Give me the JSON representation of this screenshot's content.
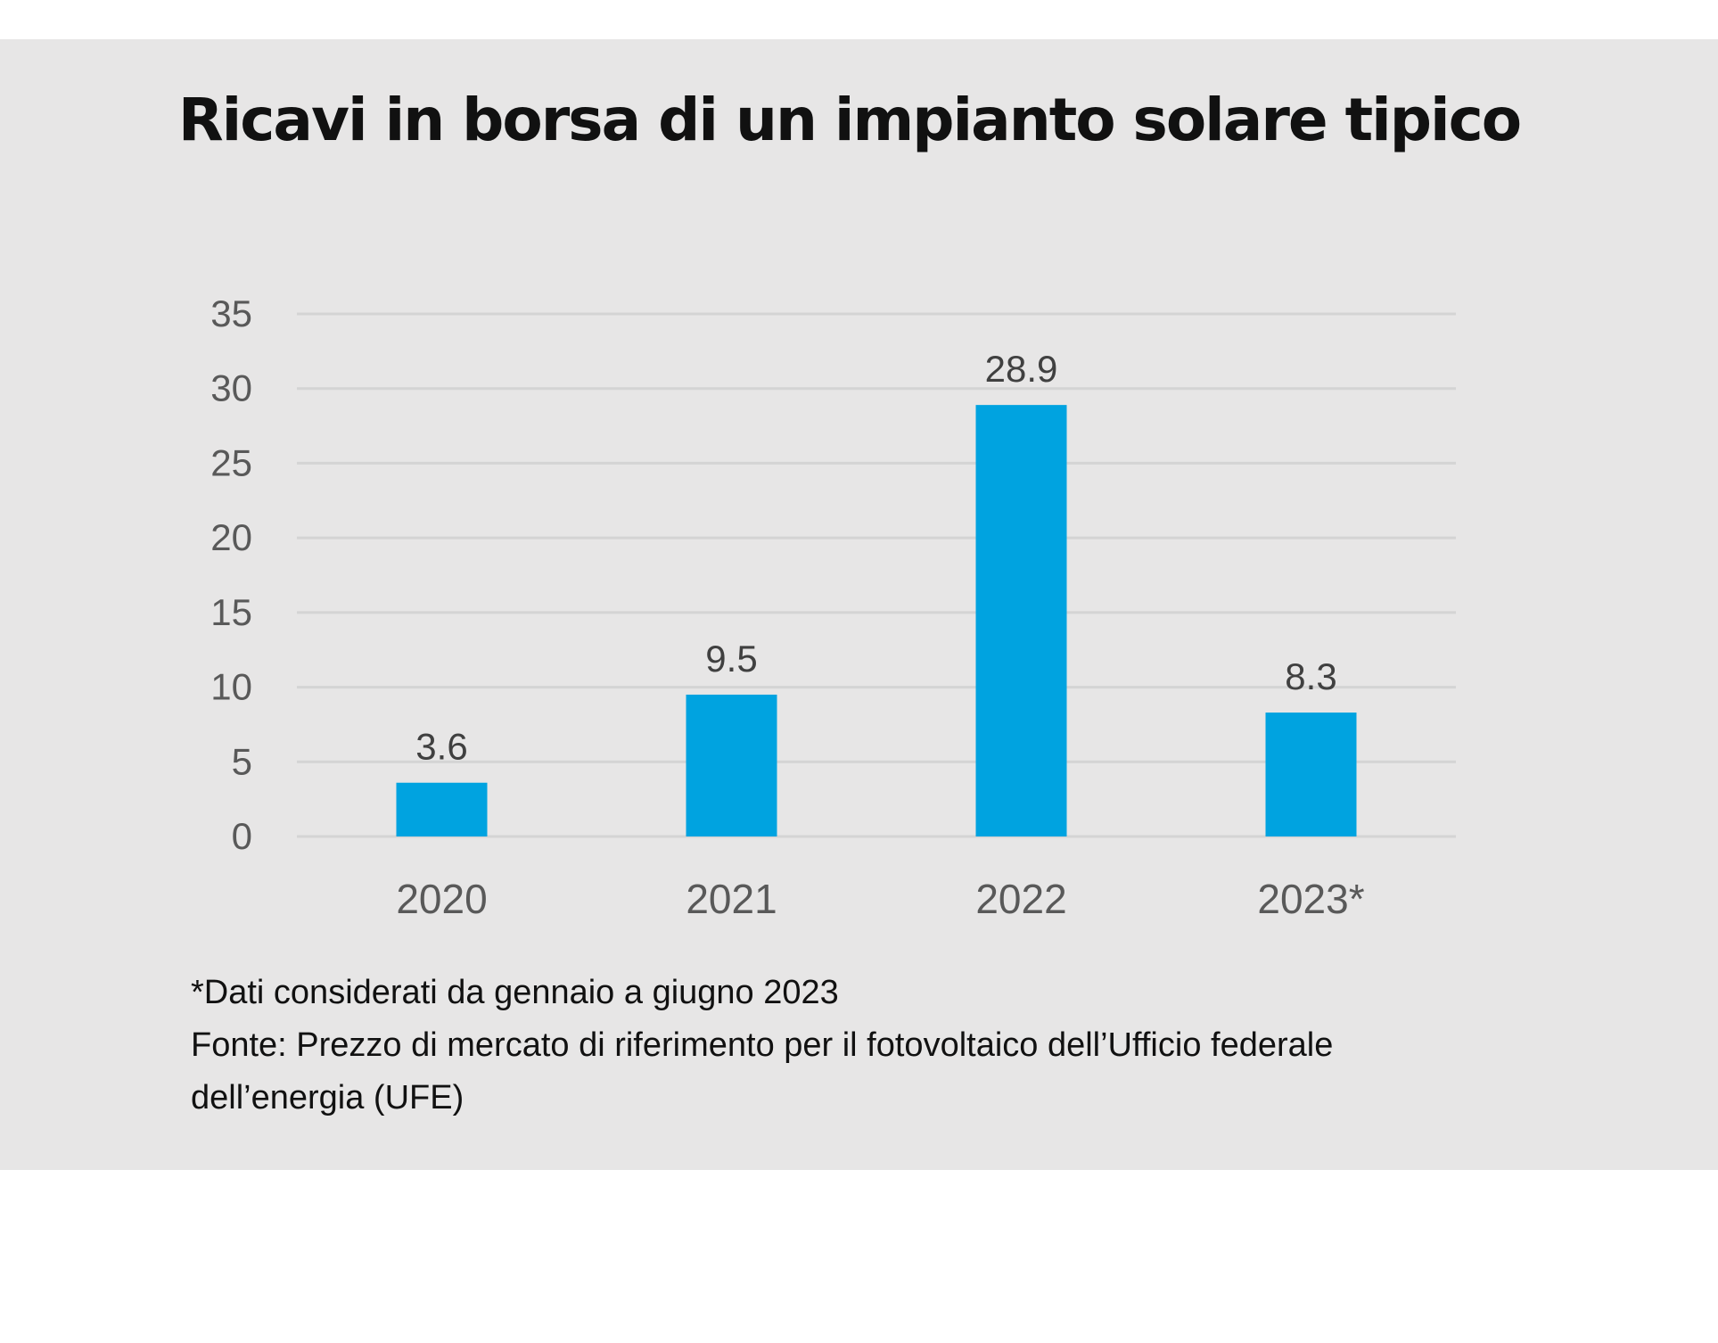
{
  "title": "Ricavi in borsa di un impianto solare tipico",
  "chart_data": {
    "type": "bar",
    "categories": [
      "2020",
      "2021",
      "2022",
      "2023*"
    ],
    "values": [
      3.6,
      9.5,
      28.9,
      8.3
    ],
    "data_labels": [
      "3.6",
      "9.5",
      "28.9",
      "8.3"
    ],
    "ylim": [
      0,
      35
    ],
    "yticks": [
      "0",
      "5",
      "10",
      "15",
      "20",
      "25",
      "30",
      "35"
    ],
    "grid": true,
    "legend": "none",
    "bar_color": "#00a3e0"
  },
  "notes": {
    "footnote": "*Dati considerati da gennaio a giugno 2023",
    "source_line1": "Fonte: Prezzo di mercato di riferimento per il fotovoltaico dell’Ufficio federale",
    "source_line2": "dell’energia (UFE)"
  }
}
